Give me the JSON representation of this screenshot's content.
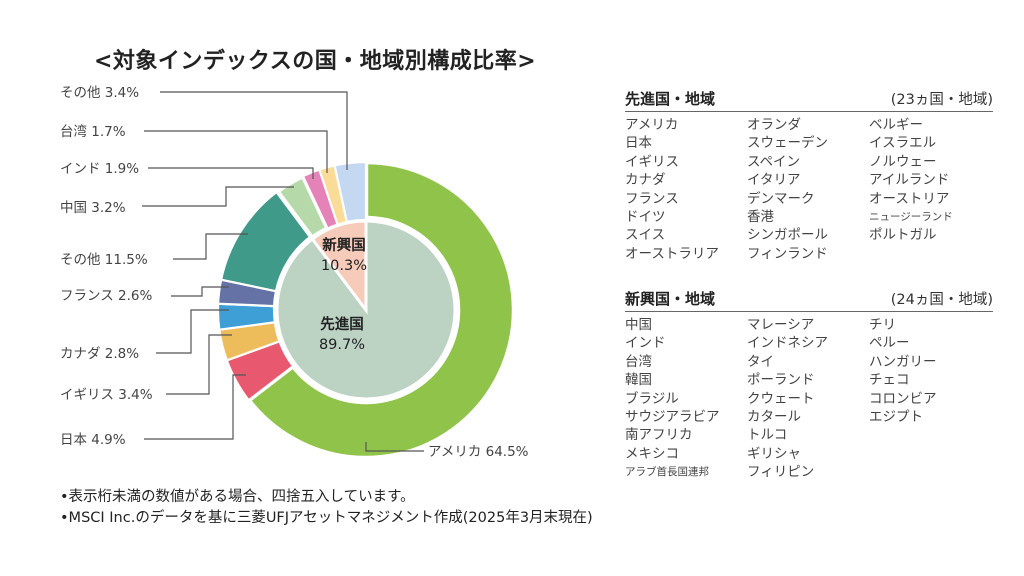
{
  "title": "<対象インデックスの国・地域別構成比率>",
  "chart_data": {
    "type": "pie",
    "title": "<対象インデックスの国・地域別構成比率>",
    "inner": [
      {
        "name": "先進国",
        "value": 89.7,
        "label": "先進国",
        "pct": "89.7%",
        "color": "#bcd3c4"
      },
      {
        "name": "新興国",
        "value": 10.3,
        "label": "新興国",
        "pct": "10.3%",
        "color": "#f7cbb9"
      }
    ],
    "outer": [
      {
        "name": "アメリカ",
        "value": 64.5,
        "label": "アメリカ 64.5%",
        "group": "先進国",
        "color": "#8fc34a"
      },
      {
        "name": "日本",
        "value": 4.9,
        "label": "日本 4.9%",
        "group": "先進国",
        "color": "#e8586e"
      },
      {
        "name": "イギリス",
        "value": 3.4,
        "label": "イギリス 3.4%",
        "group": "先進国",
        "color": "#ecbd5a"
      },
      {
        "name": "カナダ",
        "value": 2.8,
        "label": "カナダ 2.8%",
        "group": "先進国",
        "color": "#3e9fd6"
      },
      {
        "name": "フランス",
        "value": 2.6,
        "label": "フランス 2.6%",
        "group": "先進国",
        "color": "#6472a6"
      },
      {
        "name": "その他",
        "value": 11.5,
        "label": "その他 11.5%",
        "group": "先進国",
        "color": "#3f9a8a"
      },
      {
        "name": "中国",
        "value": 3.2,
        "label": "中国 3.2%",
        "group": "新興国",
        "color": "#b6d9aa"
      },
      {
        "name": "インド",
        "value": 1.9,
        "label": "インド 1.9%",
        "group": "新興国",
        "color": "#e583b8"
      },
      {
        "name": "台湾",
        "value": 1.7,
        "label": "台湾 1.7%",
        "group": "新興国",
        "color": "#fbdb98"
      },
      {
        "name": "その他",
        "value": 3.4,
        "label": "その他 3.4%",
        "group": "新興国",
        "color": "#c4d9f1"
      }
    ]
  },
  "developed": {
    "title": "先進国・地域",
    "count": "(23ヵ国・地域)",
    "columns": [
      [
        "アメリカ",
        "日本",
        "イギリス",
        "カナダ",
        "フランス",
        "ドイツ",
        "スイス",
        "オーストラリア"
      ],
      [
        "オランダ",
        "スウェーデン",
        "スペイン",
        "イタリア",
        "デンマーク",
        "香港",
        "シンガポール",
        "フィンランド"
      ],
      [
        "ベルギー",
        "イスラエル",
        "ノルウェー",
        "アイルランド",
        "オーストリア",
        "ニュージーランド",
        "ポルトガル"
      ]
    ]
  },
  "emerging": {
    "title": "新興国・地域",
    "count": "(24ヵ国・地域)",
    "columns": [
      [
        "中国",
        "インド",
        "台湾",
        "韓国",
        "ブラジル",
        "サウジアラビア",
        "南アフリカ",
        "メキシコ",
        "アラブ首長国連邦"
      ],
      [
        "マレーシア",
        "インドネシア",
        "タイ",
        "ポーランド",
        "クウェート",
        "カタール",
        "トルコ",
        "ギリシャ",
        "フィリピン"
      ],
      [
        "チリ",
        "ペルー",
        "ハンガリー",
        "チェコ",
        "コロンビア",
        "エジプト"
      ]
    ]
  },
  "notes": [
    "•表示桁未満の数値がある場合、四捨五入しています。",
    "•MSCI Inc.のデータを基に三菱UFJアセットマネジメント作成(2025年3月末現在)"
  ]
}
